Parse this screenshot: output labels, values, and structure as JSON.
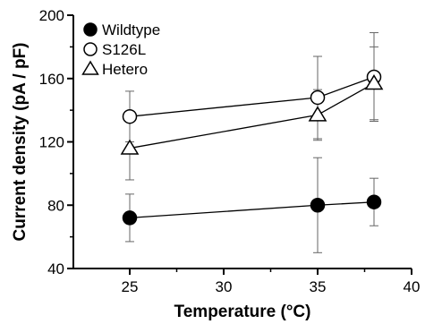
{
  "chart_data": {
    "type": "line",
    "title": "",
    "xlabel": "Temperature (°C)",
    "ylabel": "Current density (pA / pF)",
    "xlim": [
      22,
      40
    ],
    "ylim": [
      40,
      200
    ],
    "xticks": [
      25,
      30,
      35,
      40
    ],
    "yticks": [
      40,
      80,
      120,
      160,
      200
    ],
    "legend": "top-left",
    "grid": false,
    "series": [
      {
        "name": "Wildtype",
        "marker": "filled-circle",
        "color": "#000000",
        "x": [
          25,
          35,
          38
        ],
        "y": [
          72,
          80,
          82
        ],
        "err": [
          15,
          30,
          15
        ]
      },
      {
        "name": "S126L",
        "marker": "open-circle",
        "color": "#000000",
        "x": [
          25,
          35,
          38
        ],
        "y": [
          136,
          148,
          161
        ],
        "err": [
          16,
          26,
          28
        ]
      },
      {
        "name": "Hetero",
        "marker": "open-triangle",
        "color": "#000000",
        "x": [
          25,
          35,
          38
        ],
        "y": [
          116,
          137,
          157
        ],
        "err": [
          20,
          16,
          23
        ]
      }
    ]
  }
}
